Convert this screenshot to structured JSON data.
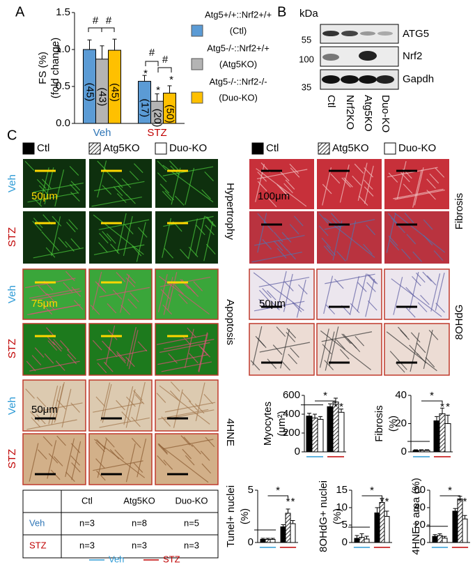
{
  "panel_labels": [
    "A",
    "B",
    "C"
  ],
  "chart_data": [
    {
      "type": "bar",
      "y_label": [
        "FS (%)",
        "(fold change)"
      ],
      "categories": [
        "Veh",
        "STZ"
      ],
      "category_colors": [
        "#2e75b6",
        "#c00000"
      ],
      "ylim": [
        0,
        1.5
      ],
      "yticks": [
        {
          "value": 0,
          "label": "0.0"
        },
        0.5,
        {
          "value": 1,
          "label": "1.0"
        },
        1.5
      ],
      "series": [
        {
          "name": "(Ctl)",
          "genotype": "Atg5+/+::Nrf2+/+",
          "color": "#5b9bd5",
          "values": [
            1.0,
            0.57
          ],
          "errors": [
            0.13,
            0.08
          ],
          "bar_labels": [
            "(45)",
            "(17)"
          ]
        },
        {
          "name": "(Atg5KO)",
          "genotype": "Atg5-/-::Nrf2+/+",
          "color": "#b4b4b4",
          "values": [
            0.87,
            0.3
          ],
          "errors": [
            0.18,
            0.1
          ],
          "bar_labels": [
            "(43)",
            "(20)"
          ]
        },
        {
          "name": "(Duo-KO)",
          "genotype": "Atg5-/-::Nrf2-/-",
          "color": "#ffc000",
          "values": [
            0.99,
            0.41
          ],
          "errors": [
            0.15,
            0.1
          ],
          "bar_labels": [
            "(45)",
            "(50)"
          ]
        }
      ],
      "annotations": [
        "#",
        "#",
        "#",
        "#",
        "*",
        "*",
        "*"
      ]
    },
    {
      "type": "bar",
      "y_label": [
        "Myocytes",
        "(μm²)"
      ],
      "ylim": [
        0,
        600
      ],
      "yticks": [
        0,
        200,
        400,
        600
      ],
      "series": [
        {
          "color": "#000000",
          "values": [
            380,
            480
          ],
          "errors": [
            30,
            30
          ]
        },
        {
          "color": "#ffffff",
          "pattern": "hatch",
          "values": [
            360,
            530
          ],
          "errors": [
            40,
            40
          ]
        },
        {
          "color": "#ffffff",
          "values": [
            345,
            420
          ],
          "errors": [
            30,
            35
          ]
        }
      ],
      "annotations": [
        "*",
        "*",
        "*"
      ]
    },
    {
      "type": "bar",
      "y_label": [
        "Fibrosis",
        "(%)"
      ],
      "ylim": [
        0,
        40
      ],
      "yticks": [
        0,
        20,
        40
      ],
      "series": [
        {
          "color": "#000000",
          "values": [
            1,
            22
          ],
          "errors": [
            0.5,
            3
          ]
        },
        {
          "color": "#ffffff",
          "pattern": "hatch",
          "values": [
            1,
            27
          ],
          "errors": [
            0.5,
            4
          ]
        },
        {
          "color": "#ffffff",
          "values": [
            1,
            20
          ],
          "errors": [
            0.5,
            6
          ]
        }
      ],
      "annotations": [
        "*",
        "*",
        "*"
      ]
    },
    {
      "type": "bar",
      "y_label": [
        "Tunel+ nuclei",
        "(%)"
      ],
      "ylim": [
        0,
        5
      ],
      "yticks": [
        0,
        5
      ],
      "series": [
        {
          "color": "#000000",
          "values": [
            0.3,
            1.5
          ],
          "errors": [
            0.1,
            0.2
          ]
        },
        {
          "color": "#ffffff",
          "pattern": "hatch",
          "values": [
            0.3,
            2.8
          ],
          "errors": [
            0.1,
            0.4
          ]
        },
        {
          "color": "#ffffff",
          "values": [
            0.3,
            1.8
          ],
          "errors": [
            0.1,
            0.3
          ]
        }
      ],
      "annotations": [
        "*",
        "*",
        "*"
      ]
    },
    {
      "type": "bar",
      "y_label": [
        "8OHdG+ nuclei",
        "(%)"
      ],
      "ylim": [
        0,
        15
      ],
      "yticks": [
        0,
        5,
        10,
        15
      ],
      "series": [
        {
          "color": "#000000",
          "values": [
            1.2,
            8.5
          ],
          "errors": [
            0.8,
            1.5
          ]
        },
        {
          "color": "#ffffff",
          "pattern": "hatch",
          "values": [
            1.5,
            11.5
          ],
          "errors": [
            1,
            1.2
          ]
        },
        {
          "color": "#ffffff",
          "values": [
            1,
            7.5
          ],
          "errors": [
            0.8,
            1.5
          ]
        }
      ],
      "annotations": [
        "*",
        "*",
        "*"
      ]
    },
    {
      "type": "bar",
      "y_label": [
        "4HNE+ area (%)"
      ],
      "ylim": [
        0,
        60
      ],
      "yticks": [
        0,
        20,
        40,
        60
      ],
      "series": [
        {
          "color": "#000000",
          "values": [
            7,
            36
          ],
          "errors": [
            2,
            3
          ]
        },
        {
          "color": "#ffffff",
          "pattern": "hatch",
          "values": [
            8,
            50
          ],
          "errors": [
            2,
            3
          ]
        },
        {
          "color": "#ffffff",
          "values": [
            5,
            27
          ],
          "errors": [
            2,
            4
          ]
        }
      ],
      "annotations": [
        "*",
        "*",
        "*"
      ]
    }
  ],
  "blot": {
    "unit": "kDa",
    "markers": [
      55,
      100,
      35
    ],
    "proteins": [
      "ATG5",
      "Nrf2",
      "Gapdh"
    ],
    "lanes": [
      "Ctl",
      "Nrf2KO",
      "Atg5KO",
      "Duo-KO"
    ]
  },
  "micrographs": {
    "legend": [
      "Ctl",
      "Atg5KO",
      "Duo-KO"
    ],
    "groups": [
      "Veh",
      "STZ"
    ],
    "stains": [
      "Hypertrophy",
      "Apoptosis",
      "4HNE",
      "Fibrosis",
      "8OHdG"
    ],
    "scale_bars": [
      "50μm",
      "75μm",
      "50μm",
      "100μm",
      "50μm"
    ]
  },
  "table": {
    "header": [
      "Ctl",
      "Atg5KO",
      "Duo-KO"
    ],
    "rows": [
      [
        "Veh",
        "n=3",
        "n=8",
        "n=5"
      ],
      [
        "STZ",
        "n=3",
        "n=3",
        "n=3"
      ]
    ]
  },
  "group_legend": {
    "labels": [
      "Veh",
      "STZ"
    ],
    "colors": [
      "#2e9bd6",
      "#c00000"
    ]
  }
}
